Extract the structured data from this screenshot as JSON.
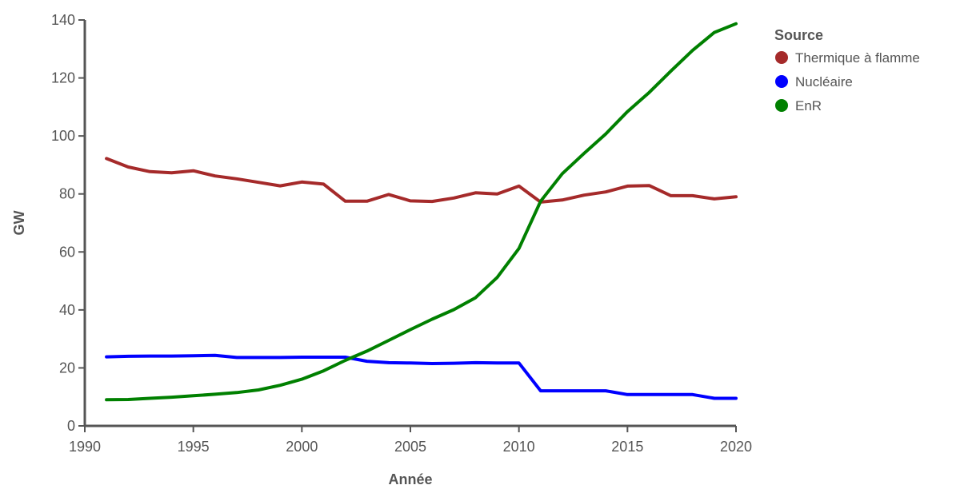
{
  "chart_data": {
    "type": "line",
    "xlabel": "Année",
    "ylabel": "GW",
    "xlim": [
      1990,
      2020
    ],
    "ylim": [
      0,
      140
    ],
    "x_ticks": [
      1990,
      1995,
      2000,
      2005,
      2010,
      2015,
      2020
    ],
    "y_ticks": [
      0,
      20,
      40,
      60,
      80,
      100,
      120,
      140
    ],
    "grid": false,
    "legend": {
      "title": "Source",
      "placement": "right"
    },
    "x": [
      1991,
      1992,
      1993,
      1994,
      1995,
      1996,
      1997,
      1998,
      1999,
      2000,
      2001,
      2002,
      2003,
      2004,
      2005,
      2006,
      2007,
      2008,
      2009,
      2010,
      2011,
      2012,
      2013,
      2014,
      2015,
      2016,
      2017,
      2018,
      2019,
      2020
    ],
    "series": [
      {
        "name": "Thermique à flamme",
        "color": "#a52a2a",
        "values": [
          92.2,
          89.3,
          87.7,
          87.3,
          88.0,
          86.2,
          85.2,
          84.0,
          82.8,
          84.1,
          83.4,
          77.5,
          77.5,
          79.8,
          77.6,
          77.4,
          78.6,
          80.4,
          80.0,
          82.7,
          77.2,
          77.9,
          79.6,
          80.7,
          82.7,
          82.9,
          79.4,
          79.4,
          78.3,
          79.0
        ]
      },
      {
        "name": "Nucléaire",
        "color": "#0000ff",
        "values": [
          23.8,
          24.0,
          24.1,
          24.1,
          24.2,
          24.3,
          23.6,
          23.6,
          23.6,
          23.7,
          23.7,
          23.7,
          22.3,
          21.8,
          21.7,
          21.5,
          21.6,
          21.8,
          21.7,
          21.7,
          12.1,
          12.1,
          12.1,
          12.1,
          10.8,
          10.8,
          10.8,
          10.8,
          9.5,
          9.5
        ]
      },
      {
        "name": "EnR",
        "color": "#008000",
        "values": [
          9.0,
          9.1,
          9.5,
          9.9,
          10.4,
          10.9,
          11.5,
          12.4,
          14.0,
          16.1,
          19.0,
          22.6,
          25.8,
          29.5,
          33.2,
          36.8,
          40.1,
          44.2,
          51.2,
          61.2,
          77.5,
          87.0,
          94.0,
          100.7,
          108.4,
          115.0,
          122.4,
          129.5,
          135.7,
          138.7
        ]
      }
    ]
  }
}
